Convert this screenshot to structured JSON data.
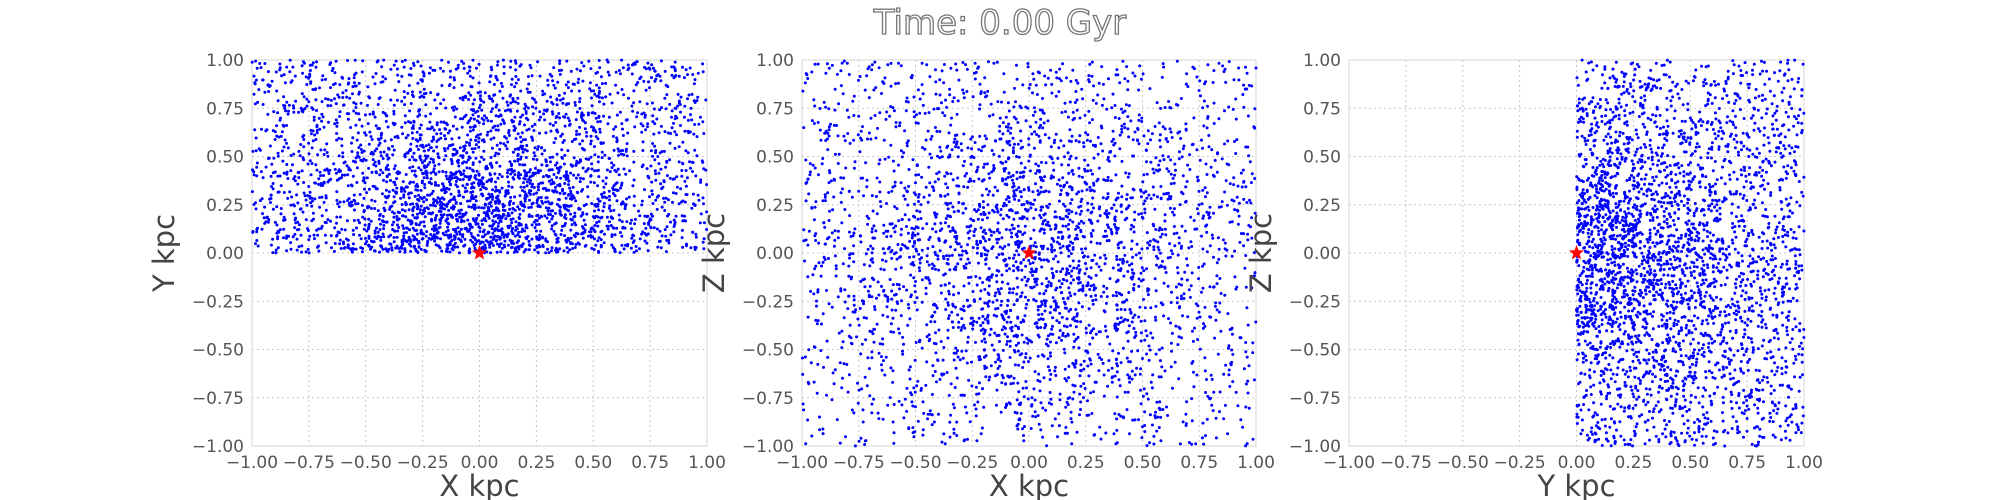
{
  "figure": {
    "title": "Time: 0.00 Gyr",
    "colors": {
      "points": "#0000ff",
      "marker": "#ff0000",
      "text": "#555555"
    }
  },
  "chart_data": [
    {
      "type": "scatter",
      "panel": "xy",
      "xlabel": "X kpc",
      "ylabel": "Y kpc",
      "xlim": [
        -1.0,
        1.0
      ],
      "ylim": [
        -1.0,
        1.0
      ],
      "grid": true,
      "xticks": [
        "−1.00",
        "−0.75",
        "−0.50",
        "−0.25",
        "0.00",
        "0.25",
        "0.50",
        "0.75",
        "1.00"
      ],
      "yticks": [
        "−1.00",
        "−0.75",
        "−0.50",
        "−0.25",
        "0.00",
        "0.25",
        "0.50",
        "0.75",
        "1.00"
      ],
      "point_region": {
        "x": [
          -1.0,
          1.0
        ],
        "y": [
          0.0,
          1.0
        ]
      },
      "marker": {
        "shape": "star",
        "x": 0.0,
        "y": 0.0
      }
    },
    {
      "type": "scatter",
      "panel": "xz",
      "xlabel": "X kpc",
      "ylabel": "Z kpc",
      "xlim": [
        -1.0,
        1.0
      ],
      "ylim": [
        -1.0,
        1.0
      ],
      "grid": true,
      "xticks": [
        "−1.00",
        "−0.75",
        "−0.50",
        "−0.25",
        "0.00",
        "0.25",
        "0.50",
        "0.75",
        "1.00"
      ],
      "yticks": [
        "−1.00",
        "−0.75",
        "−0.50",
        "−0.25",
        "0.00",
        "0.25",
        "0.50",
        "0.75",
        "1.00"
      ],
      "point_region": {
        "x": [
          -1.0,
          1.0
        ],
        "y": [
          -1.0,
          1.0
        ]
      },
      "marker": {
        "shape": "star",
        "x": 0.0,
        "y": 0.0
      }
    },
    {
      "type": "scatter",
      "panel": "yz",
      "xlabel": "Y kpc",
      "ylabel": "Z kpc",
      "xlim": [
        -1.0,
        1.0
      ],
      "ylim": [
        -1.0,
        1.0
      ],
      "grid": true,
      "xticks": [
        "−1.00",
        "−0.75",
        "−0.50",
        "−0.25",
        "0.00",
        "0.25",
        "0.50",
        "0.75",
        "1.00"
      ],
      "yticks": [
        "−1.00",
        "−0.75",
        "−0.50",
        "−0.25",
        "0.00",
        "0.25",
        "0.50",
        "0.75",
        "1.00"
      ],
      "point_region": {
        "x": [
          0.0,
          1.0
        ],
        "y": [
          -1.0,
          1.0
        ]
      },
      "marker": {
        "shape": "star",
        "x": 0.0,
        "y": 0.0
      }
    }
  ]
}
